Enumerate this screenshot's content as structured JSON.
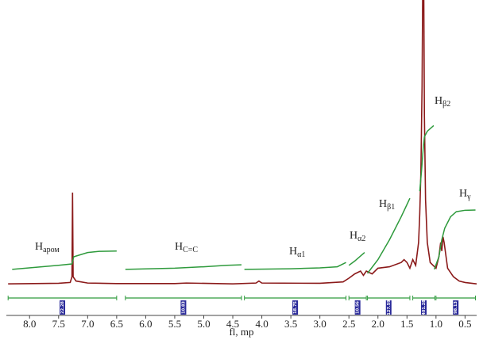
{
  "chart_data": {
    "type": "line",
    "xlabel": "fl, mp",
    "xlim": [
      8.4,
      0.3
    ],
    "xticks": [
      {
        "value": 8,
        "label": "8.0"
      },
      7.5,
      {
        "value": 7,
        "label": "7.0"
      },
      6.5,
      {
        "value": 6,
        "label": "6.0"
      },
      5.5,
      {
        "value": 5,
        "label": "5.0"
      },
      4.5,
      {
        "value": 4,
        "label": "4.0"
      },
      3.5,
      {
        "value": 3,
        "label": "3.0"
      },
      2.5,
      {
        "value": 2,
        "label": "2.0"
      },
      1.5,
      {
        "value": 1,
        "label": "1.0"
      },
      0.5
    ],
    "ylim": [
      0,
      100
    ],
    "series": [
      {
        "color": "#8b1a1a",
        "x": [
          8.37,
          7.5,
          7.3,
          7.27,
          7.26,
          7.25,
          7.2,
          7.0,
          6.5,
          5.5,
          5.3,
          4.5,
          4.1,
          4.05,
          4.0,
          3.0,
          2.6,
          2.5,
          2.4,
          2.3,
          2.25,
          2.2,
          2.1,
          2.0,
          1.8,
          1.6,
          1.55,
          1.5,
          1.45,
          1.4,
          1.35,
          1.3,
          1.28,
          1.26,
          1.24,
          1.23,
          1.21,
          1.2,
          1.18,
          1.15,
          1.1,
          1.0,
          0.95,
          0.92,
          0.9,
          0.88,
          0.86,
          0.84,
          0.8,
          0.7,
          0.6,
          0.5,
          0.3
        ],
        "values": [
          0.5,
          0.7,
          1,
          3,
          32.5,
          3,
          1.5,
          0.8,
          0.6,
          0.6,
          0.8,
          0.5,
          0.8,
          1.5,
          0.8,
          0.7,
          1.2,
          2.5,
          4,
          5,
          3.5,
          5,
          4,
          6,
          6.5,
          8,
          9,
          8,
          6,
          9,
          7,
          15,
          25,
          40,
          70,
          100,
          100,
          60,
          30,
          15,
          8,
          6,
          10,
          15,
          12,
          17,
          15,
          12,
          6,
          3,
          1.5,
          1,
          0.5
        ]
      },
      {
        "color": "#2e9a3c",
        "x": [
          8.3,
          7.5,
          7.27,
          7.24,
          7.0,
          6.8,
          6.5,
          null,
          6.35,
          5.5,
          5.0,
          4.6,
          4.35,
          null,
          4.3,
          3.5,
          3.0,
          2.7,
          2.55,
          null,
          2.5,
          2.4,
          2.23,
          null,
          2.18,
          2.0,
          1.8,
          1.6,
          1.45,
          null,
          1.28,
          1.25,
          1.22,
          1.2,
          1.15,
          1.04,
          null,
          1.03,
          0.95,
          0.9,
          0.85,
          0.75,
          0.65,
          0.5,
          0.32
        ],
        "values": [
          5.6,
          7,
          7.5,
          10,
          11.5,
          11.9,
          12,
          null,
          5.6,
          6,
          6.5,
          7,
          7.2,
          null,
          5.6,
          5.8,
          6.1,
          6.5,
          8,
          null,
          7,
          8.5,
          11.5,
          null,
          4.2,
          9,
          16,
          24,
          30.5,
          null,
          33,
          40,
          48,
          52,
          54,
          56,
          null,
          5.6,
          10,
          16,
          20,
          24,
          25.8,
          26.3,
          26.4
        ]
      }
    ],
    "annotations": [
      {
        "base": "H",
        "sub": "аром"
      },
      {
        "base": "H",
        "sub": "C=C"
      },
      {
        "base": "H",
        "sub": "α1"
      },
      {
        "base": "H",
        "sub": "α2"
      },
      {
        "base": "H",
        "sub": "β1"
      },
      {
        "base": "H",
        "sub": "β2"
      },
      {
        "base": "H",
        "sub": "γ"
      }
    ],
    "integrals": [
      {
        "from": 8.37,
        "to": 6.5,
        "value": 22.28
      },
      {
        "from": 6.35,
        "to": 4.35,
        "value": 10.83
      },
      {
        "from": 4.3,
        "to": 2.55,
        "value": 18.75
      },
      {
        "from": 2.5,
        "to": 2.2,
        "value": 10.56
      },
      {
        "from": 2.18,
        "to": 1.45,
        "value": 127.59
      },
      {
        "from": 1.4,
        "to": 1.02,
        "value": 401.28
      },
      {
        "from": 1.0,
        "to": 0.32,
        "value": 98.13
      }
    ]
  }
}
